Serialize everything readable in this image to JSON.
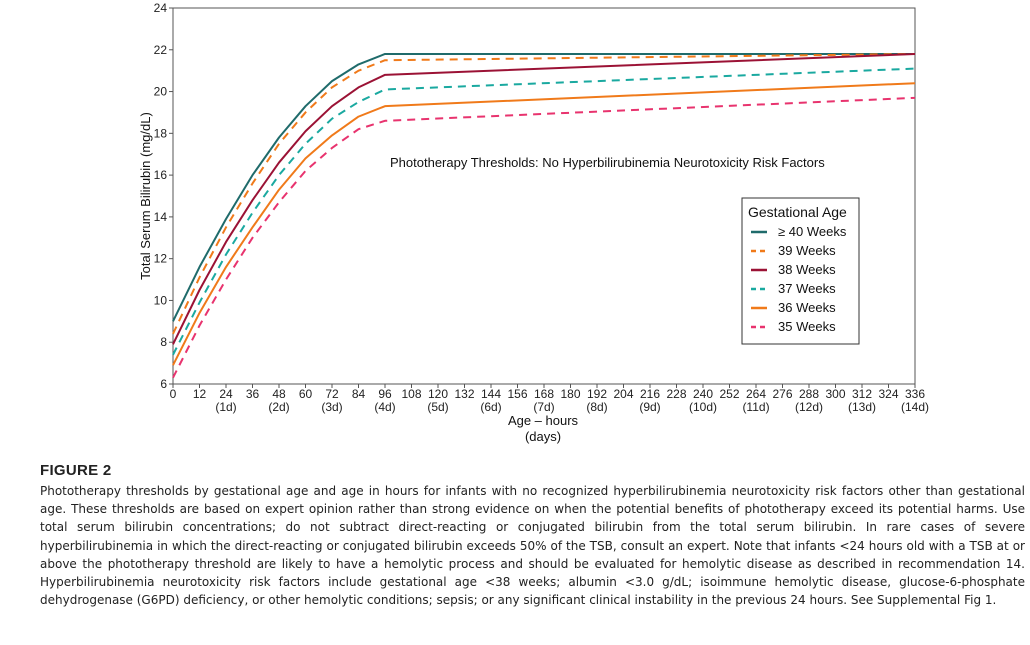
{
  "chart_data": {
    "type": "line",
    "annotation": "Phototherapy Thresholds:  No Hyperbilirubinemia Neurotoxicity Risk Factors",
    "xlabel": "Age – hours",
    "xlabel2": "(days)",
    "ylabel": "Total Serum Bilirubin (mg/dL)",
    "xlim": [
      0,
      336
    ],
    "ylim": [
      6,
      24
    ],
    "x_ticks": [
      0,
      12,
      24,
      36,
      48,
      60,
      72,
      84,
      96,
      108,
      120,
      132,
      144,
      156,
      168,
      180,
      192,
      204,
      216,
      228,
      240,
      252,
      264,
      276,
      288,
      300,
      312,
      324,
      336
    ],
    "day_ticks": [
      {
        "x": 24,
        "label": "(1d)"
      },
      {
        "x": 48,
        "label": "(2d)"
      },
      {
        "x": 72,
        "label": "(3d)"
      },
      {
        "x": 96,
        "label": "(4d)"
      },
      {
        "x": 120,
        "label": "(5d)"
      },
      {
        "x": 144,
        "label": "(6d)"
      },
      {
        "x": 168,
        "label": "(7d)"
      },
      {
        "x": 192,
        "label": "(8d)"
      },
      {
        "x": 216,
        "label": "(9d)"
      },
      {
        "x": 240,
        "label": "(10d)"
      },
      {
        "x": 264,
        "label": "(11d)"
      },
      {
        "x": 288,
        "label": "(12d)"
      },
      {
        "x": 312,
        "label": "(13d)"
      },
      {
        "x": 336,
        "label": "(14d)"
      }
    ],
    "y_ticks": [
      6,
      8,
      10,
      12,
      14,
      16,
      18,
      20,
      22,
      24
    ],
    "grid": false,
    "legend": {
      "title": "Gestational Age",
      "placement": "right"
    },
    "series": [
      {
        "name": "≥ 40 Weeks",
        "color": "#1f6b6b",
        "dash": "solid",
        "x": [
          0,
          12,
          24,
          36,
          48,
          60,
          72,
          84,
          96,
          336
        ],
        "y": [
          9.0,
          11.6,
          13.9,
          16.0,
          17.8,
          19.3,
          20.5,
          21.3,
          21.8,
          21.8
        ]
      },
      {
        "name": "39 Weeks",
        "color": "#f07a1a",
        "dash": "dashed",
        "x": [
          0,
          12,
          24,
          36,
          48,
          60,
          72,
          84,
          96,
          336
        ],
        "y": [
          8.4,
          11.1,
          13.5,
          15.6,
          17.5,
          19.0,
          20.2,
          21.0,
          21.5,
          21.8
        ]
      },
      {
        "name": "38 Weeks",
        "color": "#9b1235",
        "dash": "solid",
        "x": [
          0,
          12,
          24,
          36,
          48,
          60,
          72,
          84,
          96,
          336
        ],
        "y": [
          7.9,
          10.5,
          12.8,
          14.8,
          16.6,
          18.1,
          19.3,
          20.2,
          20.8,
          21.8
        ]
      },
      {
        "name": "37 Weeks",
        "color": "#1aa9a0",
        "dash": "dashed",
        "x": [
          0,
          12,
          24,
          36,
          48,
          60,
          72,
          84,
          96,
          336
        ],
        "y": [
          7.4,
          9.9,
          12.2,
          14.2,
          16.0,
          17.5,
          18.7,
          19.5,
          20.1,
          21.1
        ]
      },
      {
        "name": "36 Weeks",
        "color": "#f07a1a",
        "dash": "solid",
        "x": [
          0,
          12,
          24,
          36,
          48,
          60,
          72,
          84,
          96,
          336
        ],
        "y": [
          6.9,
          9.4,
          11.6,
          13.5,
          15.3,
          16.8,
          17.9,
          18.8,
          19.3,
          20.4
        ]
      },
      {
        "name": "35 Weeks",
        "color": "#e8336e",
        "dash": "dashed",
        "x": [
          0,
          12,
          24,
          36,
          48,
          60,
          72,
          84,
          96,
          336
        ],
        "y": [
          6.3,
          8.8,
          11.0,
          13.0,
          14.7,
          16.2,
          17.3,
          18.2,
          18.6,
          19.7
        ]
      }
    ]
  },
  "caption": {
    "label": "FIGURE 2",
    "text": "Phototherapy thresholds by gestational age and age in hours for infants with no recognized hyperbilirubinemia neurotoxicity risk factors other than gestational age. These thresholds are based on expert opinion rather than strong evidence on when the potential benefits of phototherapy exceed its potential harms. Use total serum bilirubin concentrations; do not subtract direct-reacting or conjugated bilirubin from the total serum bilirubin. In rare cases of severe hyperbilirubinemia in which the direct-reacting or conjugated bilirubin exceeds 50% of the TSB, consult an expert. Note that infants <24 hours old with a TSB at or above the phototherapy threshold are likely to have a hemolytic process and should be evaluated for hemolytic disease as described in recommendation 14. Hyperbilirubinemia neurotoxicity risk factors include gestational age <38 weeks; albumin <3.0 g/dL; isoimmune hemolytic disease, glucose-6-phosphate dehydrogenase (G6PD) deficiency, or other hemolytic conditions; sepsis; or any significant clinical instability in the previous 24 hours. See Supplemental Fig 1."
  }
}
